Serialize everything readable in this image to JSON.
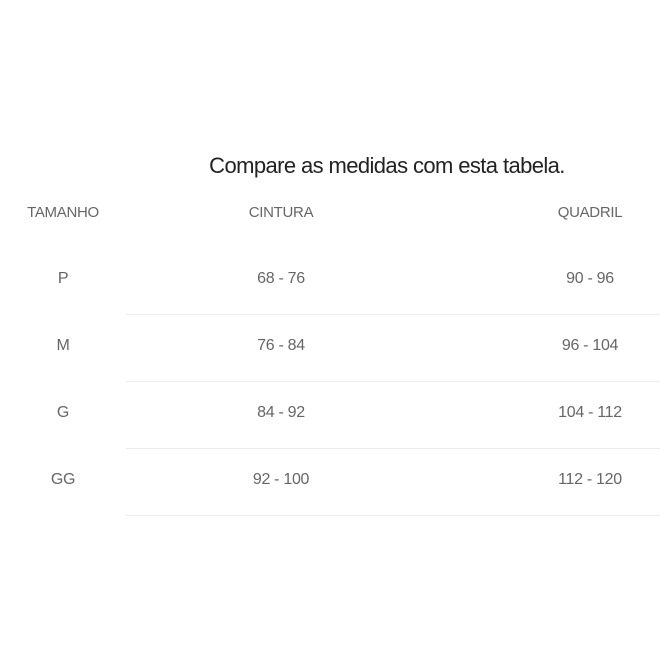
{
  "title": "Compare as medidas com esta tabela.",
  "headers": [
    "TAMANHO",
    "CINTURA",
    "QUADRIL"
  ],
  "rows": [
    [
      "P",
      "68 - 76",
      "90 - 96"
    ],
    [
      "M",
      "76 - 84",
      "96 - 104"
    ],
    [
      "G",
      "84 - 92",
      "104 - 112"
    ],
    [
      "GG",
      "92 - 100",
      "112 - 120"
    ]
  ]
}
